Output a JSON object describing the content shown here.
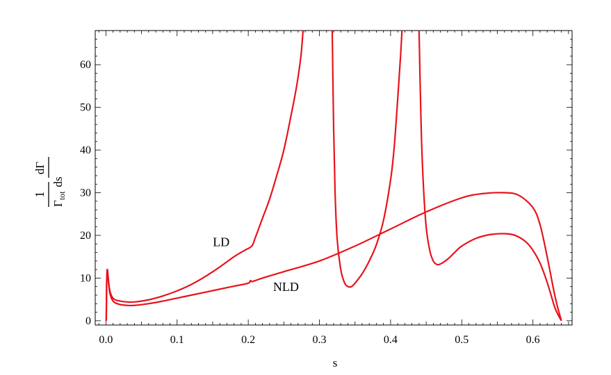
{
  "chart_data": {
    "type": "line",
    "xlabel": "s",
    "ylabel": {
      "numerator_left": "1",
      "numerator_right": "dΓ",
      "denominator_gamma": "Γ",
      "denominator_sub": "tot",
      "denominator_right": "ds"
    },
    "xlim": [
      -0.015,
      0.655
    ],
    "ylim": [
      -1,
      68
    ],
    "xticks": [
      0.0,
      0.1,
      0.2,
      0.3,
      0.4,
      0.5,
      0.6
    ],
    "xtick_labels": [
      "0.0",
      "0.1",
      "0.2",
      "0.3",
      "0.4",
      "0.5",
      "0.6"
    ],
    "yticks": [
      0,
      10,
      20,
      30,
      40,
      50,
      60
    ],
    "ytick_labels": [
      "0",
      "10",
      "20",
      "30",
      "40",
      "50",
      "60"
    ],
    "grid": false,
    "color": "#e8121b",
    "annotations": [
      {
        "text": "LD",
        "x": 0.162,
        "y": 17.5
      },
      {
        "text": "NLD",
        "x": 0.253,
        "y": 7.0
      }
    ],
    "series": [
      {
        "name": "LD",
        "segments": [
          {
            "x": [
              0.0005,
              0.001,
              0.0015,
              0.002,
              0.003,
              0.005,
              0.008,
              0.012,
              0.02,
              0.03,
              0.04,
              0.06,
              0.08,
              0.1,
              0.12,
              0.14,
              0.16,
              0.18,
              0.195,
              0.205,
              0.21,
              0.22,
              0.23,
              0.24,
              0.25,
              0.26,
              0.268,
              0.274,
              0.277
            ],
            "y": [
              0,
              8,
              11,
              12,
              10.5,
              7.5,
              5.8,
              5.0,
              4.6,
              4.4,
              4.4,
              4.9,
              5.8,
              7.0,
              8.5,
              10.4,
              12.6,
              15.0,
              16.5,
              17.5,
              19.5,
              24.0,
              28.5,
              34.0,
              40.0,
              48.0,
              55.0,
              62.0,
              68.0
            ]
          },
          {
            "x": [
              0.318,
              0.32,
              0.322,
              0.325,
              0.33,
              0.335,
              0.34,
              0.345,
              0.35,
              0.36,
              0.37,
              0.38,
              0.39,
              0.4,
              0.405,
              0.41,
              0.414,
              0.416
            ],
            "y": [
              68.0,
              45.0,
              30.0,
              19.0,
              12.0,
              9.0,
              8.0,
              8.0,
              8.8,
              11.0,
              14.0,
              17.8,
              23.5,
              33.0,
              40.5,
              52.0,
              62.0,
              68.0
            ]
          },
          {
            "x": [
              0.44,
              0.443,
              0.446,
              0.45,
              0.455,
              0.46,
              0.465,
              0.47,
              0.48,
              0.49,
              0.5,
              0.52,
              0.54,
              0.56,
              0.575,
              0.59,
              0.6,
              0.61,
              0.62,
              0.63,
              0.635,
              0.64
            ],
            "y": [
              68.0,
              45.0,
              32.0,
              22.0,
              16.5,
              14.0,
              13.2,
              13.3,
              14.4,
              16.0,
              17.5,
              19.3,
              20.2,
              20.4,
              20.0,
              18.5,
              16.5,
              13.5,
              9.0,
              3.5,
              1.5,
              0
            ]
          }
        ]
      },
      {
        "name": "NLD",
        "segments": [
          {
            "x": [
              0.0005,
              0.001,
              0.0015,
              0.002,
              0.003,
              0.005,
              0.008,
              0.012,
              0.02,
              0.03,
              0.04,
              0.06,
              0.08,
              0.1,
              0.12,
              0.14,
              0.16,
              0.18,
              0.2,
              0.203,
              0.206,
              0.22,
              0.25,
              0.3,
              0.35,
              0.4,
              0.45,
              0.5,
              0.53,
              0.56,
              0.58,
              0.6,
              0.61,
              0.62,
              0.63,
              0.635,
              0.64
            ],
            "y": [
              0,
              8,
              11,
              12,
              10.3,
              7.0,
              5.2,
              4.3,
              3.8,
              3.6,
              3.6,
              4.0,
              4.6,
              5.3,
              6.0,
              6.7,
              7.4,
              8.1,
              8.8,
              9.4,
              9.2,
              10.0,
              11.5,
              14.0,
              17.5,
              21.5,
              25.5,
              28.8,
              29.8,
              30.0,
              29.4,
              26.5,
              22.5,
              15.0,
              6.5,
              3.0,
              0
            ]
          }
        ]
      }
    ]
  }
}
